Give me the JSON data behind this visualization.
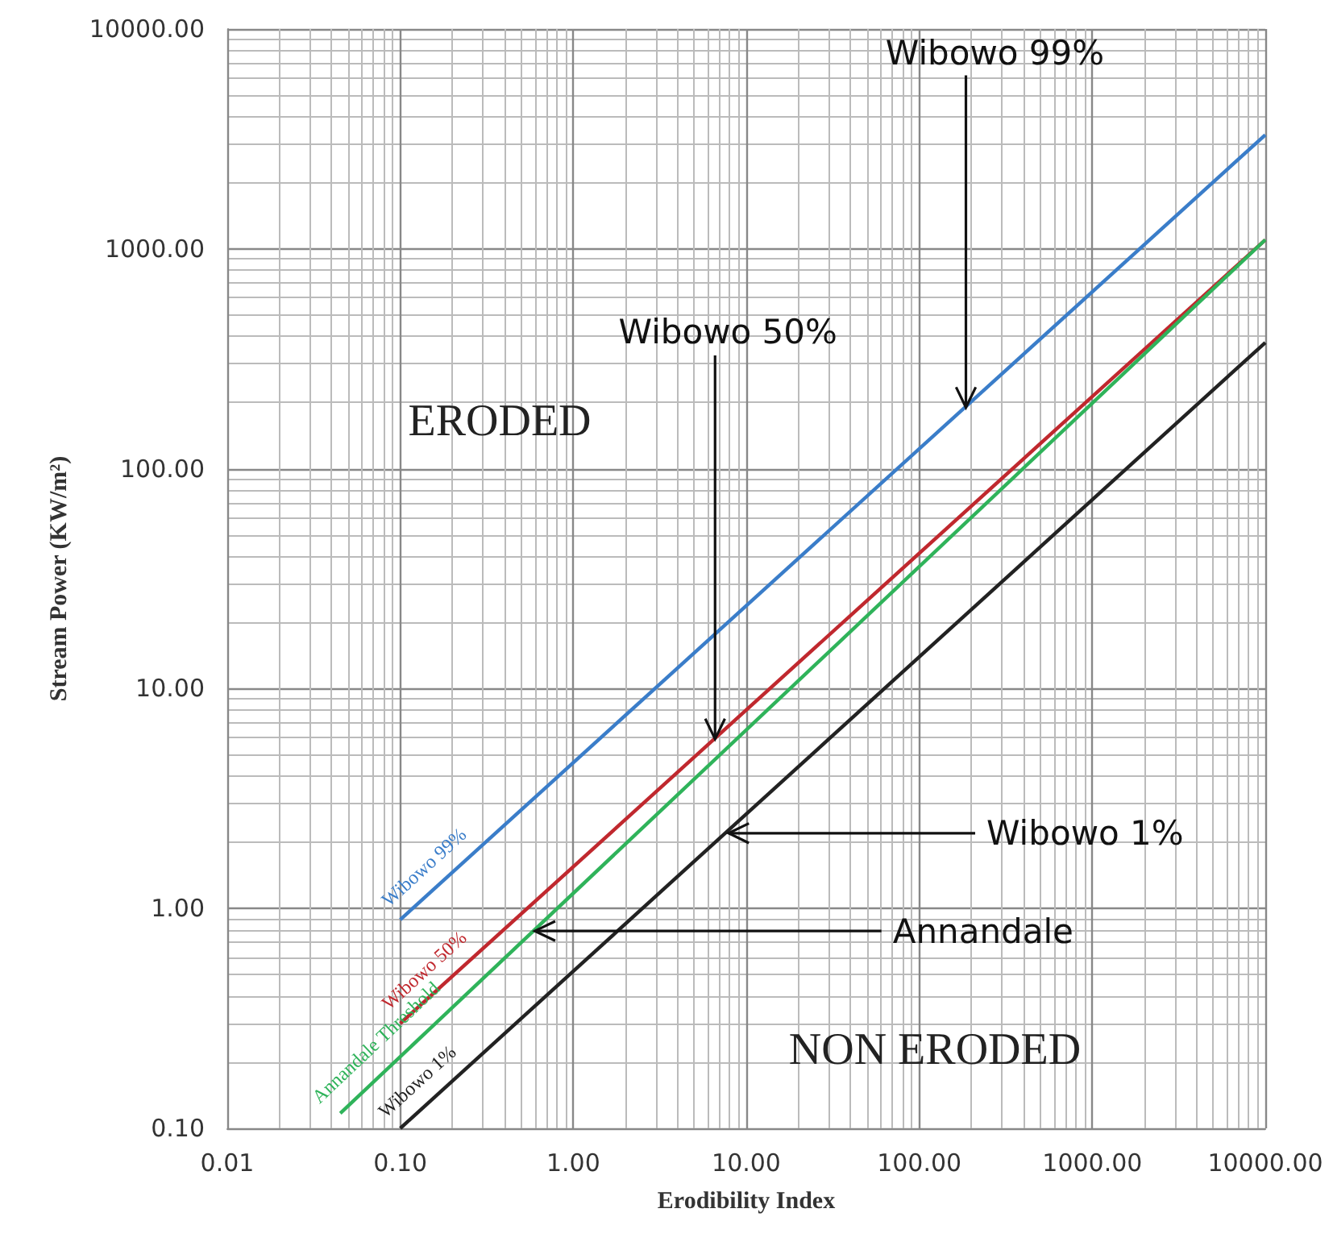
{
  "chart_data": {
    "type": "line",
    "xlabel": "Erodibility Index",
    "ylabel": "Stream Power (KW/m²)",
    "log": "xy",
    "grid": true,
    "legend": false,
    "marker": "none",
    "line_style": "solid",
    "xlim": [
      0.01,
      10000
    ],
    "ylim": [
      0.1,
      10000
    ],
    "xticks": [
      {
        "value": 0.01,
        "label": "0.01"
      },
      {
        "value": 0.1,
        "label": "0.10"
      },
      {
        "value": 1,
        "label": "1.00"
      },
      {
        "value": 10,
        "label": "10.00"
      },
      {
        "value": 100,
        "label": "100.00"
      },
      {
        "value": 1000,
        "label": "1000.00"
      },
      {
        "value": 10000,
        "label": "10000.00"
      }
    ],
    "yticks": [
      {
        "value": 0.1,
        "label": "0.10"
      },
      {
        "value": 1,
        "label": "1.00"
      },
      {
        "value": 10,
        "label": "10.00"
      },
      {
        "value": 100,
        "label": "100.00"
      },
      {
        "value": 1000,
        "label": "1000.00"
      },
      {
        "value": 10000,
        "label": "10000.00"
      }
    ],
    "series": [
      {
        "name": "Wibowo 99%",
        "color": "#3a7dc9",
        "x": [
          0.1,
          10000
        ],
        "values": [
          0.89,
          3300
        ]
      },
      {
        "name": "Wibowo 50%",
        "color": "#c0282e",
        "x": [
          0.1,
          10000
        ],
        "values": [
          0.3,
          1100
        ]
      },
      {
        "name": "Annandale Threshold",
        "color": "#2fb35a",
        "x": [
          0.045,
          10000
        ],
        "values": [
          0.117,
          1100
        ]
      },
      {
        "name": "Wibowo 1%",
        "color": "#222222",
        "x": [
          0.1,
          10000
        ],
        "values": [
          0.1,
          375
        ]
      }
    ],
    "annotations": [
      {
        "text": "Wibowo 99%",
        "x": 186,
        "y": 190
      },
      {
        "text": "Wibowo 50%",
        "x": 6.6,
        "y": 5.9
      },
      {
        "text": "Wibowo 1%",
        "x": 7.9,
        "y": 2.2
      },
      {
        "text": "Annandale",
        "x": 0.6,
        "y": 0.79
      },
      "ERODED",
      "NON ERODED"
    ]
  }
}
